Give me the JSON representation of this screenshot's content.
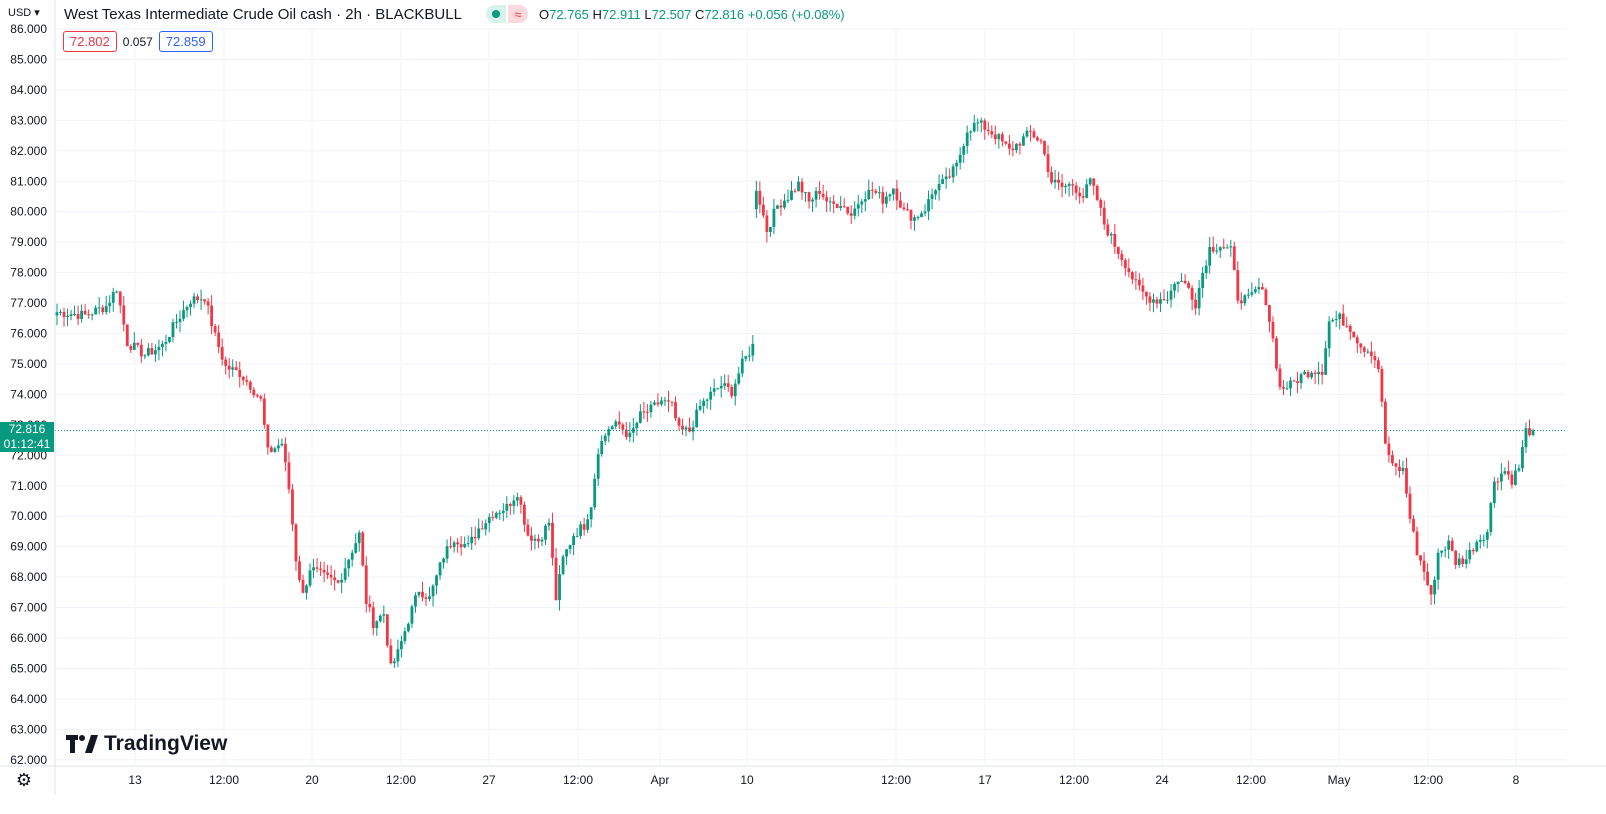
{
  "header": {
    "currency": "USD",
    "title": "West Texas Intermediate Crude Oil cash · 2h · BLACKBULL",
    "ohlc": {
      "o_label": "O",
      "o": "72.765",
      "h_label": "H",
      "h": "72.911",
      "l_label": "L",
      "l": "72.507",
      "c_label": "C",
      "c": "72.816",
      "change": "+0.056 (+0.08%)"
    },
    "bid": "72.802",
    "spread": "0.057",
    "ask": "72.859"
  },
  "price_tag": {
    "price": "72.816",
    "countdown": "01:12:41"
  },
  "logo_text": "TradingView",
  "colors": {
    "up": "#089981",
    "down": "#f23645",
    "grid": "#f0f3fa",
    "axis_text": "#131722"
  },
  "chart_data": {
    "type": "candlestick",
    "title": "West Texas Intermediate Crude Oil cash · 2h · BLACKBULL",
    "y_ticks": [
      "86.000",
      "85.000",
      "84.000",
      "83.000",
      "82.000",
      "81.000",
      "80.000",
      "79.000",
      "78.000",
      "77.000",
      "76.000",
      "75.000",
      "74.000",
      "73.000",
      "72.000",
      "71.000",
      "70.000",
      "69.000",
      "68.000",
      "67.000",
      "66.000",
      "65.000",
      "64.000",
      "63.000",
      "62.000"
    ],
    "ylim": [
      62,
      86
    ],
    "x_ticks": [
      "13",
      "12:00",
      "20",
      "12:00",
      "27",
      "12:00",
      "Apr",
      "10",
      "12:00",
      "17",
      "12:00",
      "24",
      "12:00",
      "May",
      "12:00",
      "8"
    ],
    "last_price": 72.816,
    "grid": true,
    "price_path": [
      [
        0,
        76.7
      ],
      [
        8,
        76.6
      ],
      [
        14,
        76.9
      ],
      [
        17,
        77.5
      ],
      [
        20,
        75.7
      ],
      [
        25,
        75.3
      ],
      [
        30,
        75.6
      ],
      [
        34,
        76.4
      ],
      [
        38,
        77.1
      ],
      [
        42,
        77.2
      ],
      [
        45,
        75.9
      ],
      [
        48,
        74.9
      ],
      [
        52,
        74.7
      ],
      [
        55,
        74.3
      ],
      [
        58,
        73.8
      ],
      [
        60,
        72.1
      ],
      [
        64,
        72.4
      ],
      [
        66,
        70.9
      ],
      [
        68,
        68.6
      ],
      [
        70,
        67.4
      ],
      [
        72,
        68.3
      ],
      [
        76,
        68.0
      ],
      [
        80,
        67.8
      ],
      [
        84,
        68.9
      ],
      [
        86,
        69.4
      ],
      [
        88,
        67.2
      ],
      [
        90,
        66.5
      ],
      [
        93,
        66.8
      ],
      [
        95,
        65.0
      ],
      [
        97,
        65.5
      ],
      [
        100,
        66.6
      ],
      [
        103,
        67.6
      ],
      [
        106,
        67.3
      ],
      [
        110,
        68.7
      ],
      [
        113,
        69.3
      ],
      [
        117,
        69.0
      ],
      [
        120,
        69.6
      ],
      [
        124,
        70.1
      ],
      [
        128,
        70.3
      ],
      [
        131,
        70.8
      ],
      [
        134,
        69.4
      ],
      [
        137,
        69.2
      ],
      [
        140,
        69.8
      ],
      [
        142,
        67.3
      ],
      [
        144,
        68.6
      ],
      [
        147,
        69.4
      ],
      [
        150,
        69.7
      ],
      [
        152,
        70.4
      ],
      [
        154,
        72.2
      ],
      [
        157,
        72.9
      ],
      [
        160,
        73.0
      ],
      [
        163,
        72.6
      ],
      [
        166,
        73.3
      ],
      [
        169,
        73.5
      ],
      [
        172,
        73.8
      ],
      [
        175,
        73.6
      ],
      [
        177,
        72.8
      ],
      [
        180,
        72.8
      ],
      [
        183,
        73.6
      ],
      [
        186,
        74.0
      ],
      [
        189,
        74.3
      ],
      [
        192,
        74.1
      ],
      [
        195,
        75.0
      ],
      [
        198,
        75.6
      ],
      [
        199,
        80.8
      ],
      [
        202,
        79.4
      ],
      [
        205,
        80.2
      ],
      [
        208,
        80.5
      ],
      [
        211,
        80.9
      ],
      [
        214,
        80.3
      ],
      [
        217,
        80.7
      ],
      [
        220,
        80.2
      ],
      [
        223,
        80.3
      ],
      [
        226,
        79.9
      ],
      [
        229,
        80.5
      ],
      [
        232,
        80.7
      ],
      [
        235,
        80.4
      ],
      [
        238,
        80.8
      ],
      [
        241,
        80.0
      ],
      [
        244,
        79.8
      ],
      [
        247,
        80.1
      ],
      [
        250,
        80.8
      ],
      [
        253,
        81.0
      ],
      [
        256,
        81.5
      ],
      [
        259,
        82.7
      ],
      [
        262,
        82.9
      ],
      [
        265,
        82.7
      ],
      [
        268,
        82.4
      ],
      [
        271,
        82.0
      ],
      [
        274,
        82.3
      ],
      [
        277,
        82.6
      ],
      [
        280,
        82.3
      ],
      [
        283,
        81.0
      ],
      [
        286,
        80.8
      ],
      [
        289,
        80.9
      ],
      [
        292,
        80.5
      ],
      [
        294,
        81.0
      ],
      [
        296,
        80.4
      ],
      [
        298,
        79.6
      ],
      [
        301,
        78.9
      ],
      [
        304,
        78.3
      ],
      [
        307,
        77.6
      ],
      [
        310,
        77.2
      ],
      [
        313,
        77.1
      ],
      [
        316,
        77.2
      ],
      [
        319,
        77.8
      ],
      [
        322,
        77.5
      ],
      [
        324,
        77.0
      ],
      [
        326,
        78.0
      ],
      [
        328,
        78.8
      ],
      [
        331,
        78.9
      ],
      [
        334,
        78.7
      ],
      [
        336,
        77.2
      ],
      [
        339,
        77.1
      ],
      [
        342,
        77.5
      ],
      [
        344,
        77.1
      ],
      [
        346,
        75.8
      ],
      [
        348,
        74.2
      ],
      [
        351,
        74.3
      ],
      [
        354,
        74.6
      ],
      [
        357,
        74.8
      ],
      [
        360,
        74.8
      ],
      [
        362,
        76.4
      ],
      [
        365,
        76.5
      ],
      [
        368,
        76.2
      ],
      [
        371,
        75.6
      ],
      [
        374,
        75.4
      ],
      [
        376,
        74.9
      ],
      [
        378,
        72.4
      ],
      [
        380,
        71.6
      ],
      [
        383,
        71.5
      ],
      [
        385,
        70.0
      ],
      [
        387,
        68.8
      ],
      [
        389,
        68.2
      ],
      [
        391,
        67.3
      ],
      [
        393,
        68.8
      ],
      [
        396,
        69.1
      ],
      [
        398,
        68.5
      ],
      [
        401,
        68.6
      ],
      [
        404,
        69.2
      ],
      [
        407,
        69.5
      ],
      [
        409,
        71.2
      ],
      [
        412,
        71.5
      ],
      [
        414,
        71.2
      ],
      [
        416,
        71.6
      ],
      [
        418,
        72.8
      ],
      [
        420,
        72.816
      ]
    ]
  }
}
